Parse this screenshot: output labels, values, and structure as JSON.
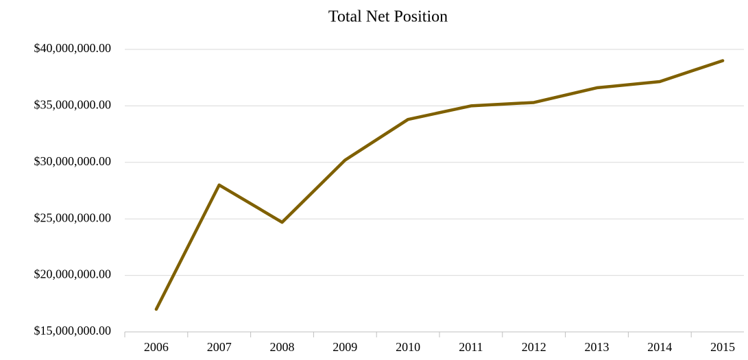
{
  "chart_data": {
    "type": "line",
    "title": "Total Net Position",
    "categories": [
      "2006",
      "2007",
      "2008",
      "2009",
      "2010",
      "2011",
      "2012",
      "2013",
      "2014",
      "2015"
    ],
    "series": [
      {
        "name": "Total Net Position",
        "color": "#7f6000",
        "values": [
          17000000,
          28000000,
          24700000,
          30200000,
          33800000,
          35000000,
          35300000,
          36600000,
          37150000,
          39000000
        ]
      }
    ],
    "ylim": [
      15000000,
      40000000
    ],
    "yticks": [
      {
        "value": 15000000,
        "label": "$15,000,000.00"
      },
      {
        "value": 20000000,
        "label": "$20,000,000.00"
      },
      {
        "value": 25000000,
        "label": "$25,000,000.00"
      },
      {
        "value": 30000000,
        "label": "$30,000,000.00"
      },
      {
        "value": 35000000,
        "label": "$35,000,000.00"
      },
      {
        "value": 40000000,
        "label": "$40,000,000.00"
      }
    ],
    "grid": true
  }
}
